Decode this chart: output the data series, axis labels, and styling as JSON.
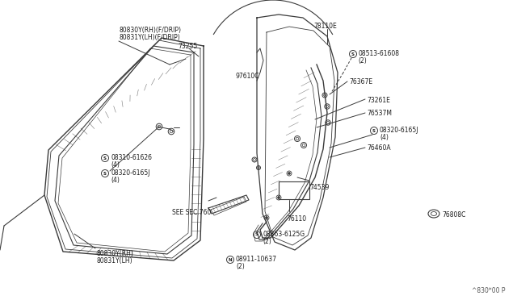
{
  "bg_color": "#ffffff",
  "line_color": "#3a3a3a",
  "text_color": "#1a1a1a",
  "fig_width": 6.4,
  "fig_height": 3.72,
  "title": "^830*00 P",
  "labels": {
    "top_left_1": "80830Y(RH)(F/DRIP)",
    "top_left_2": "80831Y(LH)(F/DRIP)",
    "part_73255": "73255",
    "part_97610C": "97610C",
    "part_78110E": "78110E",
    "part_76367E": "76367E",
    "part_73261E": "73261E",
    "part_76537M": "76537M",
    "part_76460A": "76460A",
    "part_74539": "74539",
    "part_76110": "76110",
    "part_76808C": "76808C",
    "see_sec": "SEE SEC.760",
    "bottom_left_1": "80830Y(RH)",
    "bottom_left_2": "80831Y(LH)"
  }
}
